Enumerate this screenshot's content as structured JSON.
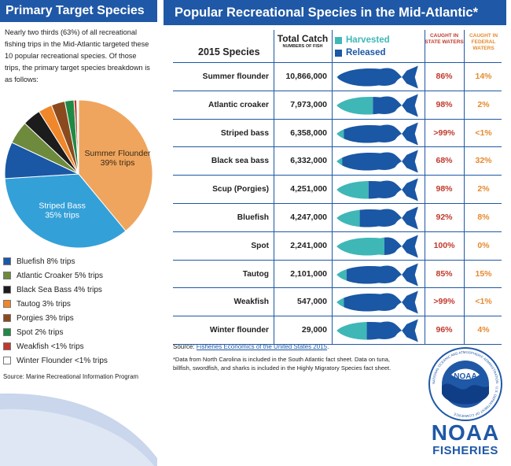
{
  "left": {
    "title": "Primary Target Species",
    "intro": "Nearly two thirds (63%) of all recreational fishing trips in the Mid-Atlantic targeted these 10 popular recreational species. Of those trips, the primary target species breakdown is as follows:",
    "source": "Source: Marine Recreational Information Program"
  },
  "chart_data": [
    {
      "type": "pie",
      "title": "Primary Target Species",
      "slices": [
        {
          "label": "Summer Flounder",
          "value": 39,
          "display": "39% trips",
          "color": "#efa55e"
        },
        {
          "label": "Striped Bass",
          "value": 35,
          "display": "35% trips",
          "color": "#34a0d8"
        },
        {
          "label": "Bluefish",
          "value": 8,
          "display": "Bluefish 8% trips",
          "color": "#1a57a5"
        },
        {
          "label": "Atlantic Croaker",
          "value": 5,
          "display": "Atlantic Croaker 5% trips",
          "color": "#6e8a3d"
        },
        {
          "label": "Black Sea Bass",
          "value": 4,
          "display": "Black Sea Bass 4% trips",
          "color": "#1c1c1c"
        },
        {
          "label": "Tautog",
          "value": 3,
          "display": "Tautog 3% trips",
          "color": "#f0872a"
        },
        {
          "label": "Porgies",
          "value": 3,
          "display": "Porgies 3% trips",
          "color": "#8b4a1e"
        },
        {
          "label": "Spot",
          "value": 2,
          "display": "Spot 2% trips",
          "color": "#1f8a45"
        },
        {
          "label": "Weakfish",
          "value": 0.6,
          "display": "Weakfish <1% trips",
          "color": "#c0392b"
        },
        {
          "label": "Winter Flounder",
          "value": 0.4,
          "display": "Winter Flounder <1% trips",
          "color": "#ffffff"
        }
      ]
    },
    {
      "type": "table",
      "title": "Popular Recreational Species in the Mid-Atlantic*",
      "columns": [
        "2015 Species",
        "Total Catch",
        "Harvested / Released",
        "CAUGHT IN STATE WATERS",
        "CAUGHT IN FEDERAL WATERS"
      ],
      "rows": [
        {
          "species": "Summer flounder",
          "catch": "10,866,000",
          "harvested_pct": 5,
          "state": "86%",
          "federal": "14%"
        },
        {
          "species": "Atlantic croaker",
          "catch": "7,973,000",
          "harvested_pct": 45,
          "state": "98%",
          "federal": "2%"
        },
        {
          "species": "Striped bass",
          "catch": "6,358,000",
          "harvested_pct": 12,
          "state": ">99%",
          "federal": "<1%"
        },
        {
          "species": "Black sea bass",
          "catch": "6,332,000",
          "harvested_pct": 10,
          "state": "68%",
          "federal": "32%"
        },
        {
          "species": "Scup (Porgies)",
          "catch": "4,251,000",
          "harvested_pct": 40,
          "state": "98%",
          "federal": "2%"
        },
        {
          "species": "Bluefish",
          "catch": "4,247,000",
          "harvested_pct": 30,
          "state": "92%",
          "federal": "8%"
        },
        {
          "species": "Spot",
          "catch": "2,241,000",
          "harvested_pct": 58,
          "state": "100%",
          "federal": "0%"
        },
        {
          "species": "Tautog",
          "catch": "2,101,000",
          "harvested_pct": 15,
          "state": "85%",
          "federal": "15%"
        },
        {
          "species": "Weakfish",
          "catch": "547,000",
          "harvested_pct": 12,
          "state": ">99%",
          "federal": "<1%"
        },
        {
          "species": "Winter flounder",
          "catch": "29,000",
          "harvested_pct": 38,
          "state": "96%",
          "federal": "4%"
        }
      ],
      "harvested_color": "#3fb7b7",
      "released_color": "#1a57a5"
    }
  ],
  "right": {
    "title": "Popular Recreational Species in the Mid-Atlantic*",
    "species_header": "2015 Species",
    "catch_header": "Total Catch",
    "catch_sub": "NUMBERS OF FISH",
    "harvested_label": "Harvested",
    "released_label": "Released",
    "state_header": "CAUGHT IN STATE WATERS",
    "federal_header": "CAUGHT IN FEDERAL WATERS",
    "source_prefix": "Source: ",
    "source_link": "Fisheries Economics of the United States 2015",
    "source_suffix": ".",
    "footnote": "*Data from North Carolina is included in the South Atlantic fact sheet. Data on tuna, billfish, swordfish, and sharks is included in the Highly Migratory Species fact sheet."
  },
  "logo": {
    "seal_text": "NOAA",
    "seal_ring_text": "NATIONAL OCEANIC AND ATMOSPHERIC ADMINISTRATION · U.S. DEPARTMENT OF COMMERCE",
    "wordmark": "NOAA",
    "sub": "FISHERIES"
  }
}
